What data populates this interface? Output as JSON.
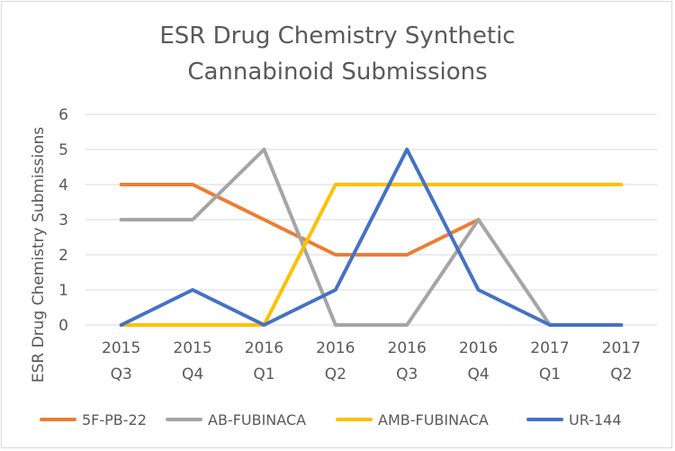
{
  "chart_data": {
    "type": "line",
    "title": [
      "ESR Drug Chemistry Synthetic",
      "Cannabinoid Submissions"
    ],
    "xlabel": "",
    "ylabel": "ESR Drug Chemistry Submissions",
    "ylim": [
      0,
      6
    ],
    "yticks": [
      0,
      1,
      2,
      3,
      4,
      5,
      6
    ],
    "grid": true,
    "legend": "bottom",
    "categories": [
      [
        "2015",
        "Q3"
      ],
      [
        "2015",
        "Q4"
      ],
      [
        "2016",
        "Q1"
      ],
      [
        "2016",
        "Q2"
      ],
      [
        "2016",
        "Q3"
      ],
      [
        "2016",
        "Q4"
      ],
      [
        "2017",
        "Q1"
      ],
      [
        "2017",
        "Q2"
      ]
    ],
    "series": [
      {
        "name": "5F-PB-22",
        "color": "#ED7D31",
        "values": [
          4,
          4,
          3,
          2,
          2,
          3,
          null,
          null
        ]
      },
      {
        "name": "AB-FUBINACA",
        "color": "#A5A5A5",
        "values": [
          3,
          3,
          5,
          0,
          0,
          3,
          0,
          null
        ]
      },
      {
        "name": "AMB-FUBINACA",
        "color": "#FFC000",
        "values": [
          0,
          0,
          0,
          4,
          4,
          4,
          4,
          4
        ]
      },
      {
        "name": "UR-144",
        "color": "#4472C4",
        "values": [
          0,
          1,
          0,
          1,
          5,
          1,
          0,
          0
        ]
      }
    ]
  }
}
